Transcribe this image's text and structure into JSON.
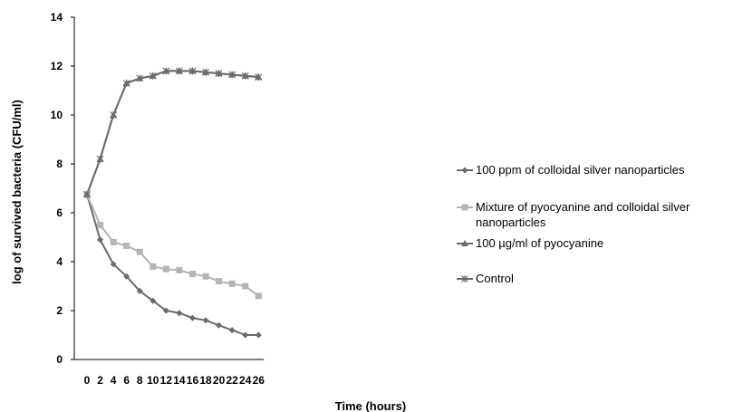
{
  "chart_data": {
    "type": "line",
    "title": "",
    "xlabel": "Time (hours)",
    "ylabel": "log of survived bacteria (CFU/ml)",
    "x": [
      0,
      2,
      4,
      6,
      8,
      10,
      12,
      14,
      16,
      18,
      20,
      22,
      24,
      26
    ],
    "ylim": [
      0,
      14
    ],
    "yticks": [
      0,
      2,
      4,
      6,
      8,
      10,
      12,
      14
    ],
    "grid": false,
    "legend_position": "right",
    "series": [
      {
        "name": "100 ppm of colloidal silver nanoparticles",
        "marker": "diamond",
        "color": "#6b6b6b",
        "values": [
          6.75,
          4.9,
          3.9,
          3.4,
          2.8,
          2.4,
          2.0,
          1.9,
          1.7,
          1.6,
          1.4,
          1.2,
          1.0,
          1.0
        ]
      },
      {
        "name": "Mixture of pyocyanine and colloidal silver nanoparticles",
        "name_lines": [
          "Mixture of pyocyanine and colloidal silver",
          "nanoparticles"
        ],
        "marker": "square",
        "color": "#b4b4b4",
        "values": [
          6.75,
          5.5,
          4.8,
          4.65,
          4.4,
          3.8,
          3.7,
          3.65,
          3.5,
          3.4,
          3.2,
          3.1,
          3.0,
          2.6
        ]
      },
      {
        "name": "100 µg/ml of pyocyanine",
        "marker": "triangle",
        "color": "#6b6b6b",
        "values": [
          6.75,
          8.2,
          10.0,
          11.3,
          11.5,
          11.6,
          11.8,
          11.8,
          11.8,
          11.75,
          11.7,
          11.65,
          11.6,
          11.55
        ]
      },
      {
        "name": "Control",
        "marker": "star",
        "color": "#6b6b6b",
        "values": [
          6.75,
          8.2,
          10.0,
          11.3,
          11.5,
          11.6,
          11.8,
          11.8,
          11.8,
          11.75,
          11.7,
          11.65,
          11.6,
          11.55
        ]
      }
    ]
  }
}
